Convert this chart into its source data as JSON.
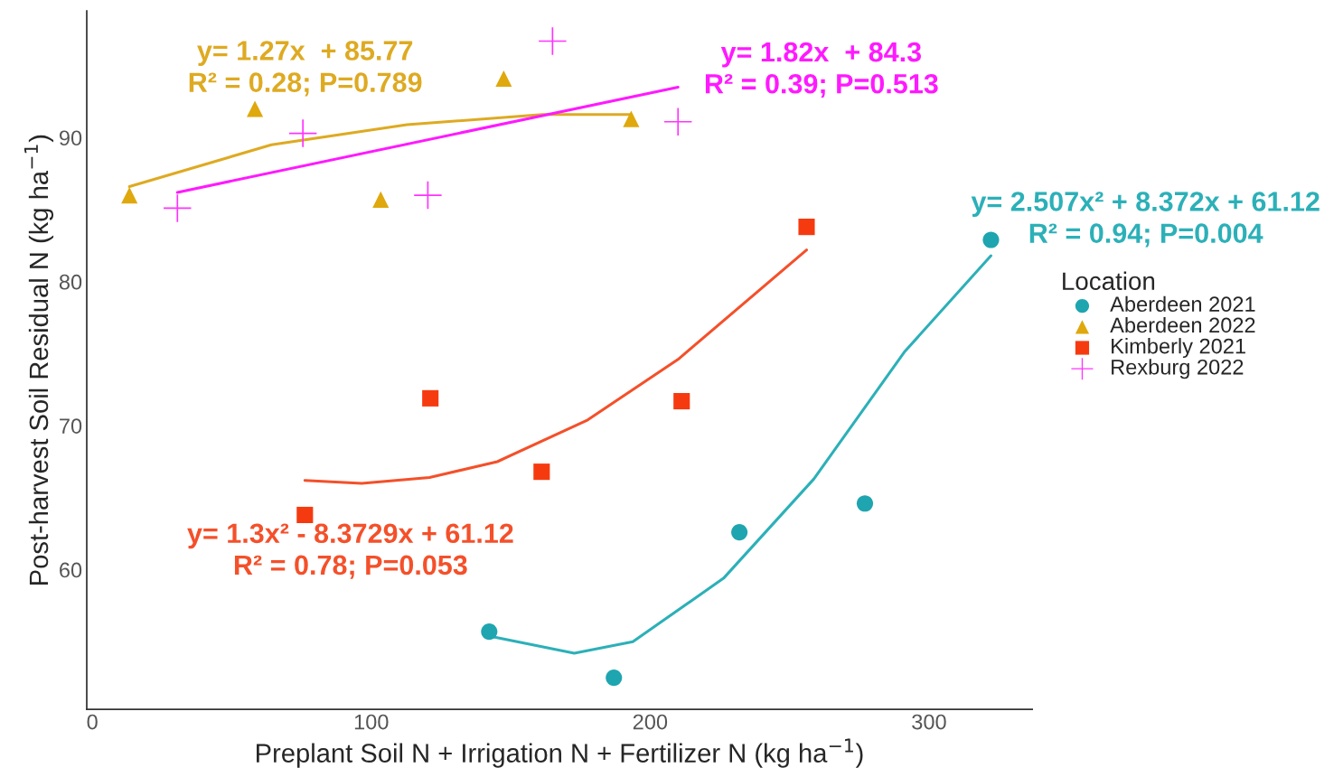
{
  "chart_data": {
    "type": "scatter",
    "xlabel": "Preplant Soil N + Irrigation N + Fertilizer N (kg ha$^{−1}$)",
    "ylabel": "Post-harvest Soil Residual N (kg ha$^{−1}$)",
    "legend_title": "Location",
    "legend": "right",
    "grid": false,
    "xlim": [
      -2,
      337
    ],
    "xticks": [
      0,
      100,
      200,
      300
    ],
    "ylim": [
      50.3,
      98.8
    ],
    "yticks": [
      60,
      70,
      80,
      90
    ],
    "series": [
      {
        "name": "Aberdeen 2021",
        "marker": "circle",
        "color": "#1ea5b0",
        "x": [
          142.3,
          187,
          232,
          277,
          322.2
        ],
        "values": [
          55.7,
          52.5,
          62.6,
          64.6,
          82.9
        ]
      },
      {
        "name": "Aberdeen 2022",
        "marker": "triangle",
        "color": "#dfa80c",
        "x": [
          13.3,
          58.3,
          103.4,
          147.5,
          193.2
        ],
        "values": [
          86.0,
          92.0,
          85.7,
          94.1,
          91.3
        ]
      },
      {
        "name": "Kimberly 2021",
        "marker": "square",
        "color": "#f63a10",
        "x": [
          76.2,
          121.2,
          161.1,
          211.3,
          256.1
        ],
        "values": [
          63.8,
          71.9,
          66.8,
          71.7,
          83.8
        ]
      },
      {
        "name": "Rexburg 2022",
        "marker": "cross",
        "color": "#ff33ff",
        "x": [
          30.5,
          75.5,
          120.3,
          165,
          210
        ],
        "values": [
          85.1,
          90.3,
          86.0,
          96.7,
          91.1
        ]
      },
      {
        "type": "line",
        "marker": "none",
        "color": "#deaa22",
        "x": [
          13.3,
          64.2,
          112.8,
          161.4,
          193.2
        ],
        "values": [
          86.6,
          89.5,
          90.9,
          91.6,
          91.6
        ]
      },
      {
        "type": "line",
        "marker": "none",
        "color": "#ff19ff",
        "x": [
          30.5,
          210
        ],
        "values": [
          86.2,
          93.5
        ]
      },
      {
        "type": "line",
        "marker": "none",
        "color": "#2cb0b8",
        "x": [
          142.3,
          172.8,
          193.8,
          226.3,
          258.7,
          291.1,
          322.2
        ],
        "values": [
          55.4,
          54.2,
          55.0,
          59.4,
          66.3,
          75.1,
          81.8
        ]
      },
      {
        "type": "line",
        "marker": "none",
        "color": "#f4502a",
        "x": [
          76.2,
          96.6,
          120.9,
          145.2,
          177.6,
          210,
          256.1
        ],
        "values": [
          66.2,
          66.0,
          66.4,
          67.5,
          70.4,
          74.6,
          82.2
        ]
      }
    ],
    "annotations": [
      "y= 1.27x  + 85.77\nR² = 0.28; P=0.789",
      "y= 1.82x  + 84.3\nR² = 0.39; P=0.513",
      "y= 2.507x² + 8.372x + 61.12\nR² = 0.94; P=0.004",
      "y= 1.3x² - 8.3729x + 61.12\nR² = 0.78; P=0.053"
    ]
  }
}
